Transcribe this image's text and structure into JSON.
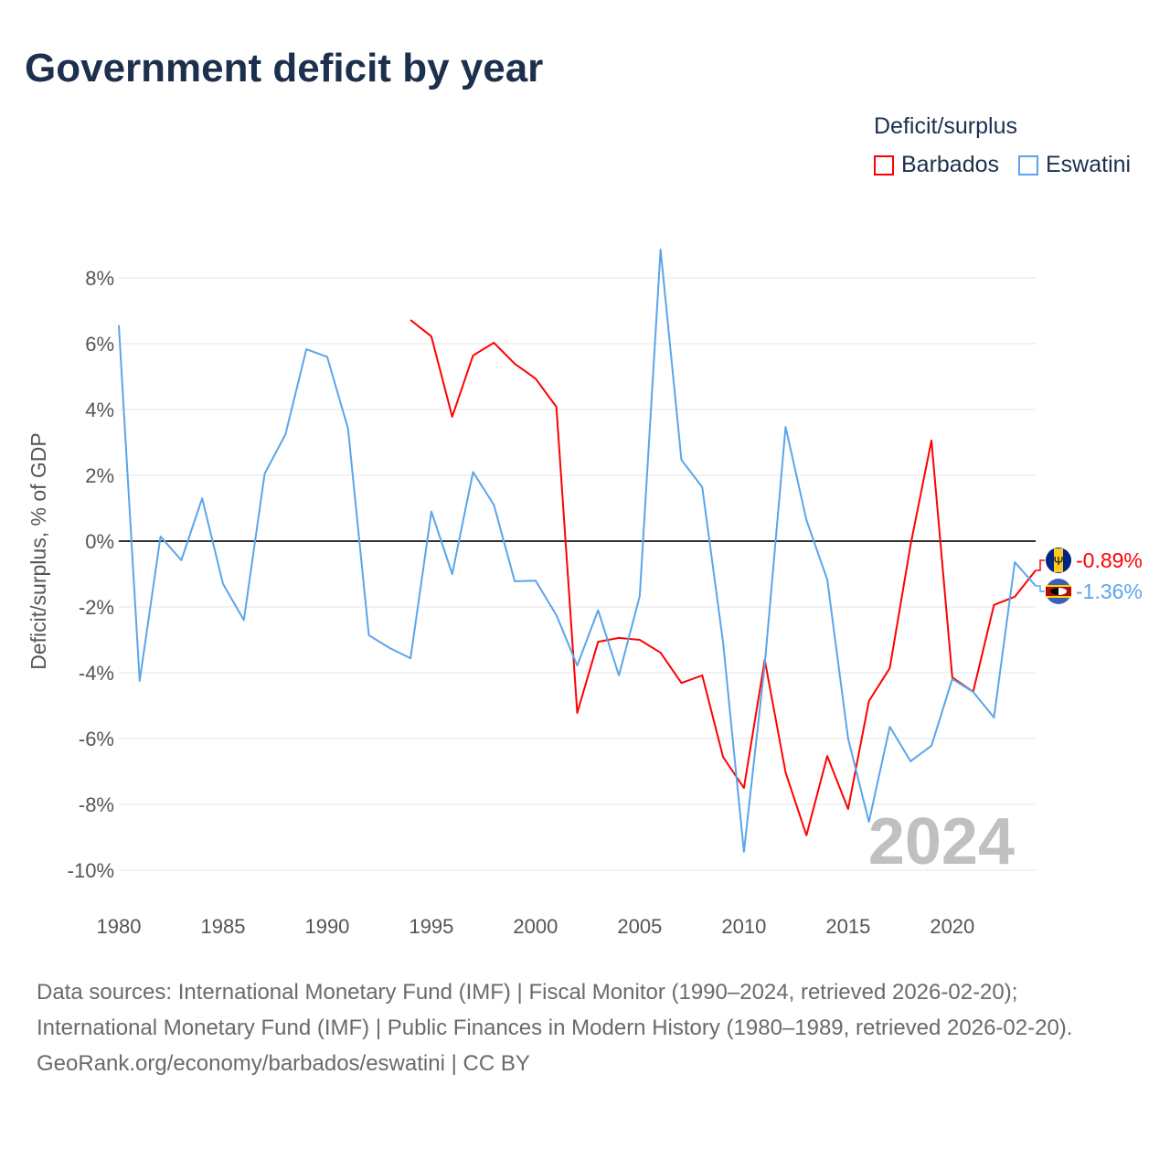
{
  "title": "Government deficit by year",
  "legend": {
    "title": "Deficit/surplus",
    "items": [
      {
        "name": "Barbados",
        "color": "#ff0000"
      },
      {
        "name": "Eswatini",
        "color": "#5aa5ea"
      }
    ]
  },
  "watermark_year": "2024",
  "end_labels": {
    "Barbados": "-0.89%",
    "Eswatini": "-1.36%"
  },
  "footer": {
    "sources": "Data sources: International Monetary Fund (IMF) | Fiscal Monitor (1990–2024, retrieved 2026-02-20); International Monetary Fund (IMF) | Public Finances in Modern History (1980–1989, retrieved 2026-02-20).",
    "credit": "GeoRank.org/economy/barbados/eswatini | CC BY"
  },
  "chart_data": {
    "type": "line",
    "title": "Government deficit by year",
    "xlabel": "",
    "ylabel": "Deficit/surplus, % of GDP",
    "xlim": [
      1980,
      2024
    ],
    "ylim": [
      -10,
      8
    ],
    "yticks": [
      -10,
      -8,
      -6,
      -4,
      -2,
      0,
      2,
      4,
      6,
      8
    ],
    "ytick_labels": [
      "-10%",
      "-8%",
      "-6%",
      "-4%",
      "-2%",
      "0%",
      "2%",
      "4%",
      "6%",
      "8%"
    ],
    "xticks": [
      1980,
      1985,
      1990,
      1995,
      2000,
      2005,
      2010,
      2015,
      2020
    ],
    "xtick_labels": [
      "1980",
      "1985",
      "1990",
      "1995",
      "2000",
      "2005",
      "2010",
      "2015",
      "2020"
    ],
    "grid": true,
    "legend_position": "top-right",
    "series": [
      {
        "name": "Barbados",
        "color": "#ff0000",
        "start_year": 1994,
        "values": [
          6.72,
          6.22,
          3.78,
          5.64,
          6.03,
          5.39,
          4.94,
          4.08,
          -5.22,
          -3.06,
          -2.94,
          -3.0,
          -3.39,
          -4.31,
          -4.08,
          -6.56,
          -7.5,
          -3.61,
          -7.03,
          -8.94,
          -6.53,
          -8.14,
          -4.86,
          -3.86,
          -0.11,
          3.06,
          -4.14,
          -4.58,
          -1.94,
          -1.69,
          -0.89
        ]
      },
      {
        "name": "Eswatini",
        "color": "#5aa5ea",
        "start_year": 1980,
        "values": [
          6.56,
          -4.25,
          0.14,
          -0.58,
          1.3,
          -1.3,
          -2.4,
          2.05,
          3.25,
          5.83,
          5.6,
          3.42,
          -2.86,
          -3.25,
          -3.56,
          0.9,
          -1.0,
          2.1,
          1.1,
          -1.22,
          -1.2,
          -2.25,
          -3.78,
          -2.1,
          -4.08,
          -1.67,
          8.86,
          2.47,
          1.64,
          -3.08,
          -9.44,
          -3.75,
          3.47,
          0.64,
          -1.17,
          -6.0,
          -8.53,
          -5.64,
          -6.69,
          -6.22,
          -4.19,
          -4.58,
          -5.36,
          -0.64,
          -1.36
        ]
      }
    ]
  }
}
